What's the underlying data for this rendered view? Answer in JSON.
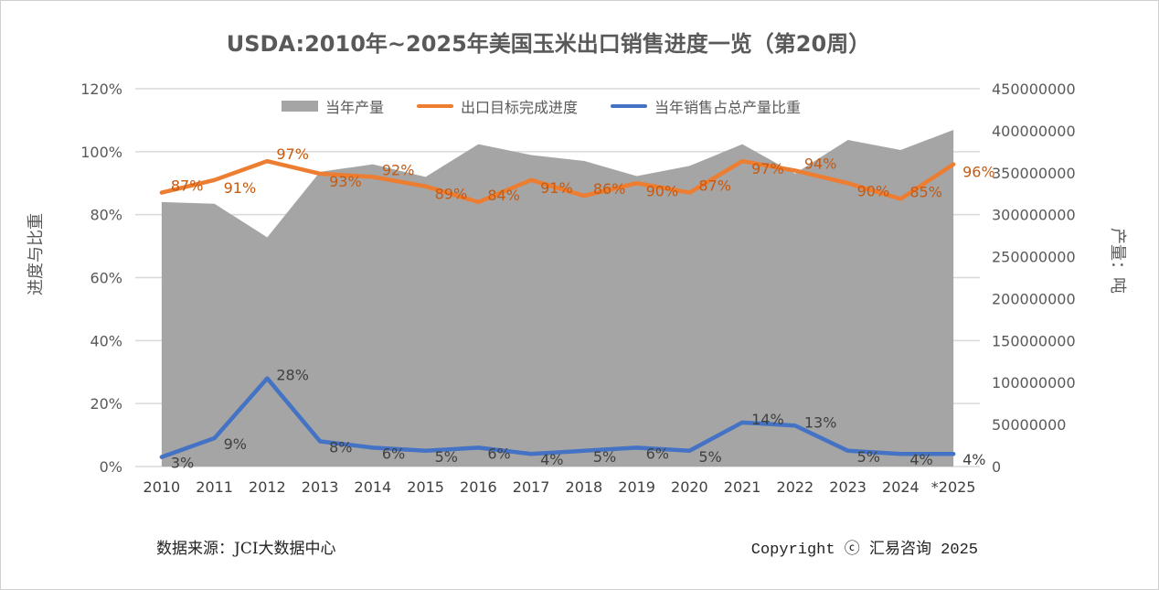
{
  "title": "USDA:2010年~2025年美国玉米出口销售进度一览（第20周）",
  "footer": {
    "source": "数据来源：JCI大数据中心",
    "copyright": "Copyright ⓒ 汇易咨询 2025"
  },
  "chart_data": {
    "type": "combo",
    "title": "USDA:2010年~2025年美国玉米出口销售进度一览（第20周）",
    "categories": [
      "2010",
      "2011",
      "2012",
      "2013",
      "2014",
      "2015",
      "2016",
      "2017",
      "2018",
      "2019",
      "2020",
      "2021",
      "2022",
      "2023",
      "2024",
      "*2025"
    ],
    "y_left": {
      "label": "进度与比重",
      "range": [
        0,
        1.2
      ],
      "ticks": [
        "0%",
        "20%",
        "40%",
        "60%",
        "80%",
        "100%",
        "120%"
      ],
      "tick_values": [
        0,
        0.2,
        0.4,
        0.6,
        0.8,
        1.0,
        1.2
      ]
    },
    "y_right": {
      "label": "产量：吨",
      "range": [
        0,
        450000000
      ],
      "ticks": [
        "0",
        "50000000",
        "100000000",
        "150000000",
        "200000000",
        "250000000",
        "300000000",
        "350000000",
        "400000000",
        "450000000"
      ],
      "tick_values": [
        0,
        50000000,
        100000000,
        150000000,
        200000000,
        250000000,
        300000000,
        350000000,
        400000000,
        450000000
      ]
    },
    "grid": true,
    "legend_position": "top",
    "series": [
      {
        "name": "当年产量",
        "type": "area",
        "axis": "right",
        "color": "#a5a5a5",
        "values": [
          315000000,
          313000000,
          273000000,
          351000000,
          360000000,
          345000000,
          384000000,
          371000000,
          364000000,
          346000000,
          358000000,
          384000000,
          349000000,
          389000000,
          377000000,
          401000000
        ]
      },
      {
        "name": "出口目标完成进度",
        "type": "line",
        "axis": "left",
        "color": "#ed7d31",
        "label_color": "#c55a11",
        "values": [
          0.87,
          0.91,
          0.97,
          0.93,
          0.92,
          0.89,
          0.84,
          0.91,
          0.86,
          0.9,
          0.87,
          0.97,
          0.94,
          0.9,
          0.85,
          0.96
        ],
        "labels": [
          "87%",
          "91%",
          "97%",
          "93%",
          "92%",
          "89%",
          "84%",
          "91%",
          "86%",
          "90%",
          "87%",
          "97%",
          "94%",
          "90%",
          "85%",
          "96%"
        ]
      },
      {
        "name": "当年销售占总产量比重",
        "type": "line",
        "axis": "left",
        "color": "#4472c4",
        "label_color": "#404040",
        "values": [
          0.03,
          0.09,
          0.28,
          0.08,
          0.06,
          0.05,
          0.06,
          0.04,
          0.05,
          0.06,
          0.05,
          0.14,
          0.13,
          0.05,
          0.04,
          0.04
        ],
        "labels": [
          "3%",
          "9%",
          "28%",
          "8%",
          "6%",
          "5%",
          "6%",
          "4%",
          "5%",
          "6%",
          "5%",
          "14%",
          "13%",
          "5%",
          "4%",
          "4%"
        ]
      }
    ]
  }
}
